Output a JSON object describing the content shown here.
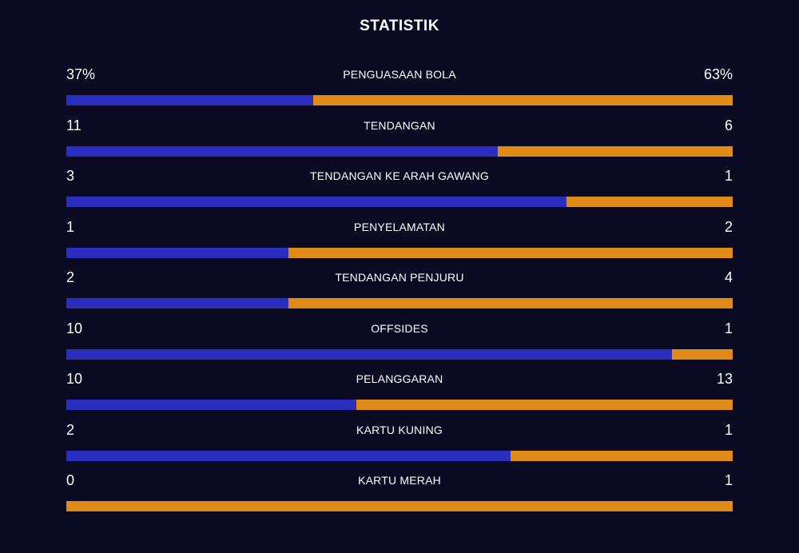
{
  "title": "STATISTIK",
  "colors": {
    "background": "#0a0a23",
    "home": "#2b2fbf",
    "away": "#e08a18",
    "text": "#ffffff"
  },
  "stats": [
    {
      "label": "PENGUASAAN BOLA",
      "home": "37%",
      "away": "63%",
      "home_share": 0.37
    },
    {
      "label": "TENDANGAN",
      "home": "11",
      "away": "6",
      "home_share": 0.647
    },
    {
      "label": "TENDANGAN KE ARAH GAWANG",
      "home": "3",
      "away": "1",
      "home_share": 0.75
    },
    {
      "label": "PENYELAMATAN",
      "home": "1",
      "away": "2",
      "home_share": 0.333
    },
    {
      "label": "TENDANGAN PENJURU",
      "home": "2",
      "away": "4",
      "home_share": 0.333
    },
    {
      "label": "OFFSIDES",
      "home": "10",
      "away": "1",
      "home_share": 0.909
    },
    {
      "label": "PELANGGARAN",
      "home": "10",
      "away": "13",
      "home_share": 0.435
    },
    {
      "label": "KARTU KUNING",
      "home": "2",
      "away": "1",
      "home_share": 0.667
    },
    {
      "label": "KARTU MERAH",
      "home": "0",
      "away": "1",
      "home_share": 0.0
    }
  ]
}
